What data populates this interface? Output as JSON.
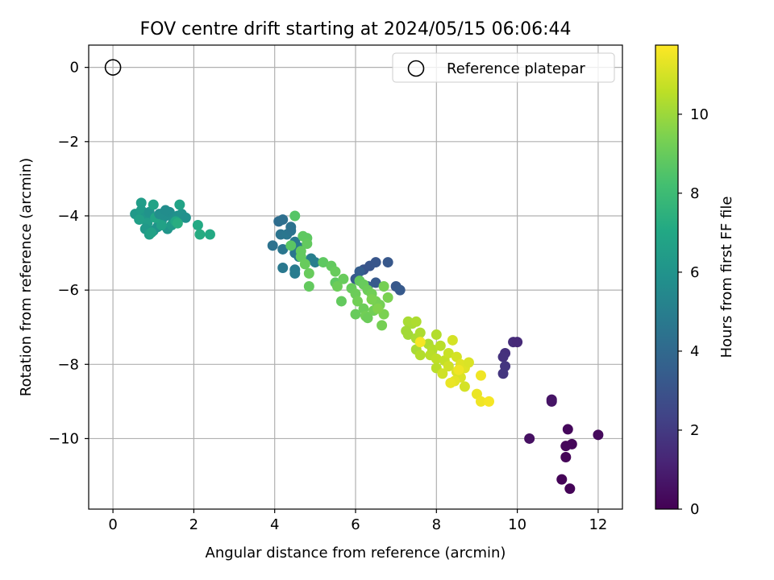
{
  "chart_data": {
    "type": "scatter",
    "title": "FOV centre drift starting at 2024/05/15 06:06:44",
    "xlabel": "Angular distance from reference (arcmin)",
    "ylabel": "Rotation from reference (arcmin)",
    "xlim": [
      -0.6,
      12.6
    ],
    "ylim": [
      -11.9,
      0.6
    ],
    "xticks": [
      0,
      2,
      4,
      6,
      8,
      10,
      12
    ],
    "yticks": [
      0,
      -2,
      -4,
      -6,
      -8,
      -10
    ],
    "grid": true,
    "legend": {
      "position": "top-right",
      "entries": [
        "Reference platepar"
      ]
    },
    "reference_point": {
      "x": 0,
      "y": 0
    },
    "colorbar": {
      "label": "Hours from first FF file",
      "colormap": "viridis",
      "range": [
        0,
        11.75
      ],
      "ticks": [
        0,
        2,
        4,
        6,
        8,
        10
      ]
    },
    "points": [
      {
        "x": 11.3,
        "y": -11.35,
        "h": 0.1
      },
      {
        "x": 11.1,
        "y": -11.1,
        "h": 0.1
      },
      {
        "x": 11.2,
        "y": -10.5,
        "h": 0.15
      },
      {
        "x": 11.2,
        "y": -10.2,
        "h": 0.2
      },
      {
        "x": 11.35,
        "y": -10.15,
        "h": 0.2
      },
      {
        "x": 11.25,
        "y": -9.75,
        "h": 0.25
      },
      {
        "x": 12.0,
        "y": -9.9,
        "h": 0.3
      },
      {
        "x": 10.3,
        "y": -10.0,
        "h": 0.5
      },
      {
        "x": 10.85,
        "y": -8.95,
        "h": 0.6
      },
      {
        "x": 10.85,
        "y": -9.0,
        "h": 0.65
      },
      {
        "x": 9.7,
        "y": -7.7,
        "h": 1.6
      },
      {
        "x": 9.65,
        "y": -7.8,
        "h": 1.7
      },
      {
        "x": 9.7,
        "y": -8.05,
        "h": 1.8
      },
      {
        "x": 9.65,
        "y": -8.25,
        "h": 1.85
      },
      {
        "x": 9.9,
        "y": -7.4,
        "h": 1.5
      },
      {
        "x": 10.0,
        "y": -7.4,
        "h": 1.4
      },
      {
        "x": 6.2,
        "y": -5.45,
        "h": 3.0
      },
      {
        "x": 6.35,
        "y": -5.35,
        "h": 3.1
      },
      {
        "x": 6.5,
        "y": -5.25,
        "h": 3.15
      },
      {
        "x": 6.8,
        "y": -5.25,
        "h": 3.2
      },
      {
        "x": 6.0,
        "y": -5.7,
        "h": 3.3
      },
      {
        "x": 6.5,
        "y": -5.8,
        "h": 3.3
      },
      {
        "x": 7.0,
        "y": -5.9,
        "h": 3.2
      },
      {
        "x": 7.1,
        "y": -6.0,
        "h": 3.3
      },
      {
        "x": 6.3,
        "y": -5.9,
        "h": 3.4
      },
      {
        "x": 6.1,
        "y": -5.5,
        "h": 3.5
      },
      {
        "x": 4.1,
        "y": -4.15,
        "h": 4.2
      },
      {
        "x": 4.2,
        "y": -4.1,
        "h": 4.3
      },
      {
        "x": 3.95,
        "y": -4.8,
        "h": 4.4
      },
      {
        "x": 4.15,
        "y": -4.5,
        "h": 4.5
      },
      {
        "x": 4.3,
        "y": -4.5,
        "h": 4.6
      },
      {
        "x": 4.4,
        "y": -4.4,
        "h": 4.5
      },
      {
        "x": 4.2,
        "y": -4.9,
        "h": 4.6
      },
      {
        "x": 4.5,
        "y": -4.7,
        "h": 4.7
      },
      {
        "x": 4.6,
        "y": -4.85,
        "h": 4.8
      },
      {
        "x": 4.2,
        "y": -5.4,
        "h": 4.7
      },
      {
        "x": 4.5,
        "y": -5.45,
        "h": 4.8
      },
      {
        "x": 4.6,
        "y": -5.1,
        "h": 4.9
      },
      {
        "x": 4.5,
        "y": -5.55,
        "h": 4.9
      },
      {
        "x": 4.9,
        "y": -5.15,
        "h": 5.0
      },
      {
        "x": 5.0,
        "y": -5.25,
        "h": 5.0
      },
      {
        "x": 4.4,
        "y": -4.3,
        "h": 4.4
      },
      {
        "x": 4.5,
        "y": -5.0,
        "h": 4.6
      },
      {
        "x": 0.7,
        "y": -3.65,
        "h": 6.5
      },
      {
        "x": 0.55,
        "y": -3.95,
        "h": 6.3
      },
      {
        "x": 0.7,
        "y": -3.85,
        "h": 6.4
      },
      {
        "x": 0.8,
        "y": -4.05,
        "h": 6.2
      },
      {
        "x": 0.9,
        "y": -3.9,
        "h": 6.0
      },
      {
        "x": 1.0,
        "y": -3.7,
        "h": 6.8
      },
      {
        "x": 0.85,
        "y": -4.2,
        "h": 6.5
      },
      {
        "x": 0.8,
        "y": -4.35,
        "h": 6.3
      },
      {
        "x": 0.9,
        "y": -4.5,
        "h": 6.6
      },
      {
        "x": 1.0,
        "y": -4.4,
        "h": 6.2
      },
      {
        "x": 1.1,
        "y": -4.3,
        "h": 6.0
      },
      {
        "x": 1.2,
        "y": -4.15,
        "h": 5.9
      },
      {
        "x": 1.3,
        "y": -4.0,
        "h": 5.8
      },
      {
        "x": 1.4,
        "y": -3.9,
        "h": 5.7
      },
      {
        "x": 1.5,
        "y": -4.1,
        "h": 5.8
      },
      {
        "x": 1.6,
        "y": -4.0,
        "h": 5.9
      },
      {
        "x": 1.7,
        "y": -3.95,
        "h": 6.0
      },
      {
        "x": 1.8,
        "y": -4.05,
        "h": 5.9
      },
      {
        "x": 1.65,
        "y": -3.7,
        "h": 6.8
      },
      {
        "x": 1.35,
        "y": -4.35,
        "h": 6.1
      },
      {
        "x": 1.45,
        "y": -4.25,
        "h": 6.4
      },
      {
        "x": 1.55,
        "y": -4.15,
        "h": 7.0
      },
      {
        "x": 1.2,
        "y": -4.25,
        "h": 6.7
      },
      {
        "x": 1.05,
        "y": -4.05,
        "h": 6.9
      },
      {
        "x": 1.15,
        "y": -3.95,
        "h": 5.8
      },
      {
        "x": 2.1,
        "y": -4.25,
        "h": 7.1
      },
      {
        "x": 2.15,
        "y": -4.5,
        "h": 7.2
      },
      {
        "x": 2.4,
        "y": -4.5,
        "h": 7.1
      },
      {
        "x": 1.6,
        "y": -4.2,
        "h": 7.3
      },
      {
        "x": 0.95,
        "y": -4.45,
        "h": 6.7
      },
      {
        "x": 1.3,
        "y": -3.85,
        "h": 5.7
      },
      {
        "x": 0.65,
        "y": -4.1,
        "h": 6.6
      },
      {
        "x": 4.5,
        "y": -4.0,
        "h": 8.6
      },
      {
        "x": 4.4,
        "y": -4.8,
        "h": 8.7
      },
      {
        "x": 4.7,
        "y": -4.55,
        "h": 8.8
      },
      {
        "x": 4.8,
        "y": -4.6,
        "h": 8.8
      },
      {
        "x": 4.8,
        "y": -4.75,
        "h": 8.9
      },
      {
        "x": 4.65,
        "y": -4.95,
        "h": 8.9
      },
      {
        "x": 4.65,
        "y": -5.1,
        "h": 8.9
      },
      {
        "x": 4.75,
        "y": -5.3,
        "h": 9.0
      },
      {
        "x": 4.85,
        "y": -5.55,
        "h": 9.0
      },
      {
        "x": 4.85,
        "y": -5.9,
        "h": 8.9
      },
      {
        "x": 5.2,
        "y": -5.25,
        "h": 8.8
      },
      {
        "x": 5.4,
        "y": -5.35,
        "h": 8.9
      },
      {
        "x": 5.5,
        "y": -5.5,
        "h": 9.0
      },
      {
        "x": 5.5,
        "y": -5.8,
        "h": 8.8
      },
      {
        "x": 5.55,
        "y": -5.9,
        "h": 9.1
      },
      {
        "x": 5.7,
        "y": -5.7,
        "h": 9.0
      },
      {
        "x": 5.65,
        "y": -6.3,
        "h": 8.9
      },
      {
        "x": 5.9,
        "y": -5.95,
        "h": 9.0
      },
      {
        "x": 6.0,
        "y": -6.1,
        "h": 9.1
      },
      {
        "x": 6.05,
        "y": -6.3,
        "h": 9.2
      },
      {
        "x": 6.0,
        "y": -6.65,
        "h": 9.0
      },
      {
        "x": 6.2,
        "y": -6.5,
        "h": 9.1
      },
      {
        "x": 6.25,
        "y": -6.7,
        "h": 9.2
      },
      {
        "x": 6.3,
        "y": -6.75,
        "h": 9.1
      },
      {
        "x": 6.1,
        "y": -5.75,
        "h": 8.9
      },
      {
        "x": 6.2,
        "y": -5.85,
        "h": 9.0
      },
      {
        "x": 6.3,
        "y": -6.0,
        "h": 9.1
      },
      {
        "x": 6.4,
        "y": -6.1,
        "h": 9.2
      },
      {
        "x": 6.5,
        "y": -6.3,
        "h": 9.3
      },
      {
        "x": 6.45,
        "y": -6.55,
        "h": 9.2
      },
      {
        "x": 6.6,
        "y": -6.4,
        "h": 9.3
      },
      {
        "x": 6.7,
        "y": -6.65,
        "h": 9.4
      },
      {
        "x": 6.65,
        "y": -6.95,
        "h": 9.3
      },
      {
        "x": 6.7,
        "y": -5.9,
        "h": 9.3
      },
      {
        "x": 6.8,
        "y": -6.2,
        "h": 9.4
      },
      {
        "x": 6.55,
        "y": -6.5,
        "h": 9.5
      },
      {
        "x": 6.4,
        "y": -6.25,
        "h": 9.4
      },
      {
        "x": 7.3,
        "y": -6.85,
        "h": 10.2
      },
      {
        "x": 7.4,
        "y": -6.9,
        "h": 10.2
      },
      {
        "x": 7.5,
        "y": -6.85,
        "h": 10.3
      },
      {
        "x": 7.25,
        "y": -7.1,
        "h": 10.1
      },
      {
        "x": 7.3,
        "y": -7.2,
        "h": 10.1
      },
      {
        "x": 7.5,
        "y": -7.3,
        "h": 10.2
      },
      {
        "x": 7.6,
        "y": -7.15,
        "h": 10.3
      },
      {
        "x": 7.5,
        "y": -7.6,
        "h": 10.2
      },
      {
        "x": 7.6,
        "y": -7.75,
        "h": 10.4
      },
      {
        "x": 7.8,
        "y": -7.45,
        "h": 10.3
      },
      {
        "x": 7.9,
        "y": -7.6,
        "h": 10.4
      },
      {
        "x": 7.85,
        "y": -7.75,
        "h": 10.5
      },
      {
        "x": 8.0,
        "y": -7.2,
        "h": 10.4
      },
      {
        "x": 8.1,
        "y": -7.5,
        "h": 10.5
      },
      {
        "x": 8.0,
        "y": -7.85,
        "h": 10.6
      },
      {
        "x": 8.0,
        "y": -8.1,
        "h": 10.5
      },
      {
        "x": 8.2,
        "y": -7.9,
        "h": 10.7
      },
      {
        "x": 8.3,
        "y": -7.7,
        "h": 10.8
      },
      {
        "x": 8.3,
        "y": -8.05,
        "h": 10.9
      },
      {
        "x": 8.4,
        "y": -7.35,
        "h": 11.0
      },
      {
        "x": 8.5,
        "y": -7.8,
        "h": 11.0
      },
      {
        "x": 8.5,
        "y": -8.2,
        "h": 11.1
      },
      {
        "x": 8.6,
        "y": -8.0,
        "h": 11.2
      },
      {
        "x": 8.6,
        "y": -8.35,
        "h": 11.1
      },
      {
        "x": 8.7,
        "y": -8.1,
        "h": 11.2
      },
      {
        "x": 8.7,
        "y": -8.6,
        "h": 11.0
      },
      {
        "x": 8.8,
        "y": -7.95,
        "h": 11.1
      },
      {
        "x": 8.45,
        "y": -8.45,
        "h": 11.3
      },
      {
        "x": 8.15,
        "y": -8.25,
        "h": 10.9
      },
      {
        "x": 7.6,
        "y": -7.4,
        "h": 11.6
      },
      {
        "x": 9.0,
        "y": -8.8,
        "h": 11.4
      },
      {
        "x": 9.1,
        "y": -9.0,
        "h": 11.5
      },
      {
        "x": 9.1,
        "y": -8.3,
        "h": 11.5
      },
      {
        "x": 9.3,
        "y": -9.0,
        "h": 11.6
      },
      {
        "x": 8.35,
        "y": -8.5,
        "h": 11.4
      },
      {
        "x": 8.55,
        "y": -8.15,
        "h": 11.5
      }
    ]
  }
}
